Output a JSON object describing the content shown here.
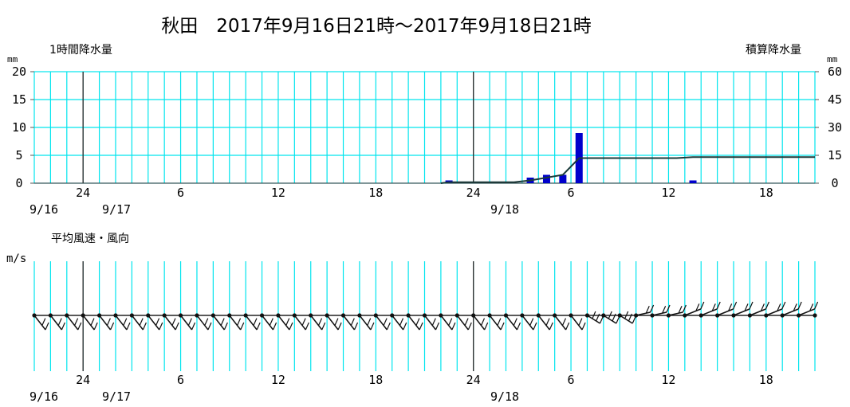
{
  "chart_data": {
    "title": "秋田　2017年9月16日21時～2017年9月18日21時",
    "precip": {
      "type": "bar",
      "left_label": "1時間降水量",
      "right_label": "積算降水量",
      "left_unit": "mm",
      "right_unit": "mm",
      "left_ticks": [
        "20",
        "15",
        "10",
        "5",
        "0"
      ],
      "right_ticks": [
        "60",
        "45",
        "30",
        "15",
        "0"
      ],
      "ylim_left": [
        0,
        20
      ],
      "ylim_right": [
        0,
        60
      ],
      "x_tick_labels": [
        "24",
        "6",
        "12",
        "18",
        "24",
        "6",
        "12",
        "18"
      ],
      "date_labels": [
        "9/16",
        "9/17",
        "9/18"
      ],
      "hourly": [
        {
          "time": "9/17 23時",
          "value": 0.5
        },
        {
          "time": "9/18 4時",
          "value": 1.0
        },
        {
          "time": "9/18 5時",
          "value": 1.5
        },
        {
          "time": "9/18 6時",
          "value": 1.5
        },
        {
          "time": "9/18 7時",
          "value": 9.0
        },
        {
          "time": "9/18 14時",
          "value": 0.5
        }
      ],
      "cumulative": [
        {
          "time": "9/17 22時",
          "value": 0
        },
        {
          "time": "9/17 23時",
          "value": 0.5
        },
        {
          "time": "9/18 3時",
          "value": 0.5
        },
        {
          "time": "9/18 4時",
          "value": 1.5
        },
        {
          "time": "9/18 5時",
          "value": 3.0
        },
        {
          "time": "9/18 6時",
          "value": 4.5
        },
        {
          "time": "9/18 7時",
          "value": 13.5
        },
        {
          "time": "9/18 13時",
          "value": 13.5
        },
        {
          "time": "9/18 14時",
          "value": 14.0
        },
        {
          "time": "9/18 21時",
          "value": 14.0
        }
      ],
      "bar_color": "#0000cc",
      "grid_color": "#00e5ee"
    },
    "wind": {
      "type": "wind-barb",
      "label": "平均風速・風向",
      "unit": "m/s",
      "x_tick_labels": [
        "24",
        "6",
        "12",
        "18",
        "24",
        "6",
        "12",
        "18"
      ],
      "date_labels": [
        "9/16",
        "9/17",
        "9/18"
      ]
    }
  }
}
